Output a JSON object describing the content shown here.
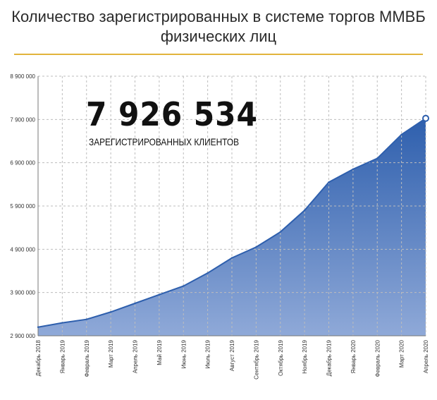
{
  "title_line1": "Количество зарегистрированных в системе торгов ММВБ",
  "title_line2": "физических лиц",
  "highlight": {
    "value": "7 926 534",
    "caption": "ЗАРЕГИСТРИРОВАННЫХ КЛИЕНТОВ"
  },
  "colors": {
    "accent_rule": "#e2b43c",
    "area_top": "#2e5fad",
    "area_bottom": "#8fa9d8",
    "line": "#2e5fad",
    "grid": "#bdbdbd"
  },
  "chart_data": {
    "type": "area",
    "title": "Количество зарегистрированных в системе торгов ММВБ физических лиц",
    "xlabel": "",
    "ylabel": "",
    "categories": [
      "Декабрь 2018",
      "Январь 2019",
      "Февраль 2019",
      "Март 2019",
      "Апрель 2019",
      "Май 2019",
      "Июнь 2019",
      "Июль 2019",
      "Август 2019",
      "Сентябрь 2019",
      "Октябрь 2019",
      "Ноябрь 2019",
      "Декабрь 2019",
      "Январь 2020",
      "Февраль 2020",
      "Март 2020",
      "Апрель 2020"
    ],
    "values": [
      3100000,
      3200000,
      3280000,
      3450000,
      3650000,
      3850000,
      4050000,
      4350000,
      4700000,
      4950000,
      5300000,
      5800000,
      6450000,
      6750000,
      7000000,
      7550000,
      7926534
    ],
    "y_ticks": [
      "2 900 000",
      "3 900 000",
      "4 900 000",
      "5 900 000",
      "6 900 000",
      "7 900 000",
      "8 900 000"
    ],
    "y_tick_values": [
      2900000,
      3900000,
      4900000,
      5900000,
      6900000,
      7900000,
      8900000
    ],
    "ylim": [
      2900000,
      8900000
    ],
    "grid": true,
    "end_marker": true
  }
}
